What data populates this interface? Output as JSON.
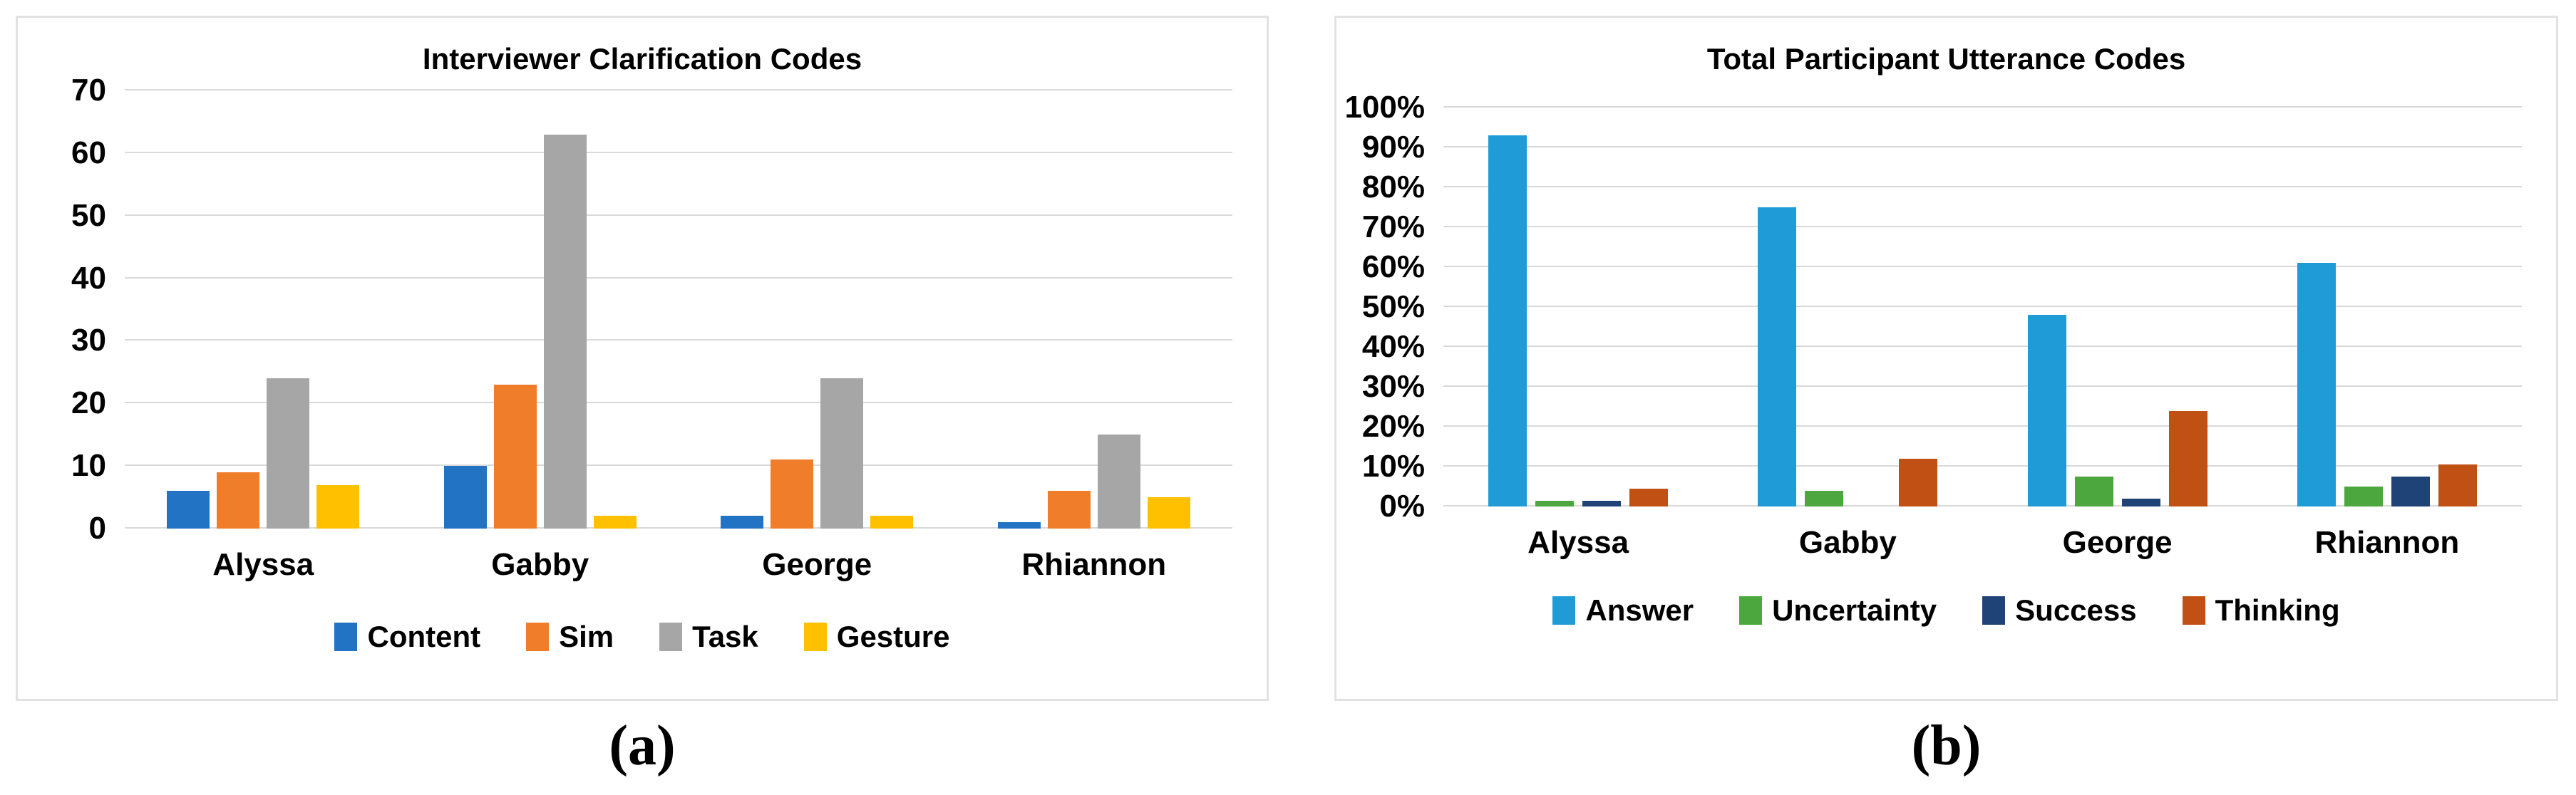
{
  "chart_data": [
    {
      "id": "a",
      "type": "bar",
      "title": "Interviewer Clarification Codes",
      "caption": "(a)",
      "categories": [
        "Alyssa",
        "Gabby",
        "George",
        "Rhiannon"
      ],
      "series": [
        {
          "name": "Content",
          "color": "#2373C5",
          "values": [
            6,
            10,
            2,
            1
          ]
        },
        {
          "name": "Sim",
          "color": "#F07D29",
          "values": [
            9,
            23,
            11,
            6
          ]
        },
        {
          "name": "Task",
          "color": "#A6A6A6",
          "values": [
            24,
            63,
            24,
            15
          ]
        },
        {
          "name": "Gesture",
          "color": "#FFC000",
          "values": [
            7,
            2,
            2,
            5
          ]
        }
      ],
      "ylim": [
        0,
        70
      ],
      "yticks": [
        "0",
        "10",
        "20",
        "30",
        "40",
        "50",
        "60",
        "70"
      ],
      "grid": "horizontal",
      "legend_position": "bottom",
      "gridline_color": "#D9D9D9"
    },
    {
      "id": "b",
      "type": "bar",
      "title": "Total Participant Utterance Codes",
      "caption": "(b)",
      "categories": [
        "Alyssa",
        "Gabby",
        "George",
        "Rhiannon"
      ],
      "series": [
        {
          "name": "Answer",
          "color": "#1F9CD7",
          "values": [
            93,
            75,
            48,
            61
          ]
        },
        {
          "name": "Uncertainty",
          "color": "#4CA83E",
          "values": [
            1.5,
            4,
            7.5,
            5
          ]
        },
        {
          "name": "Success",
          "color": "#1F4377",
          "values": [
            1.5,
            0,
            2,
            7.5
          ]
        },
        {
          "name": "Thinking",
          "color": "#C05014",
          "values": [
            4.5,
            12,
            24,
            10.5
          ]
        }
      ],
      "ylim": [
        0,
        100
      ],
      "yticks": [
        "0%",
        "10%",
        "20%",
        "30%",
        "40%",
        "50%",
        "60%",
        "70%",
        "80%",
        "90%",
        "100%"
      ],
      "grid": "horizontal",
      "legend_position": "bottom",
      "gridline_color": "#D9D9D9"
    }
  ]
}
